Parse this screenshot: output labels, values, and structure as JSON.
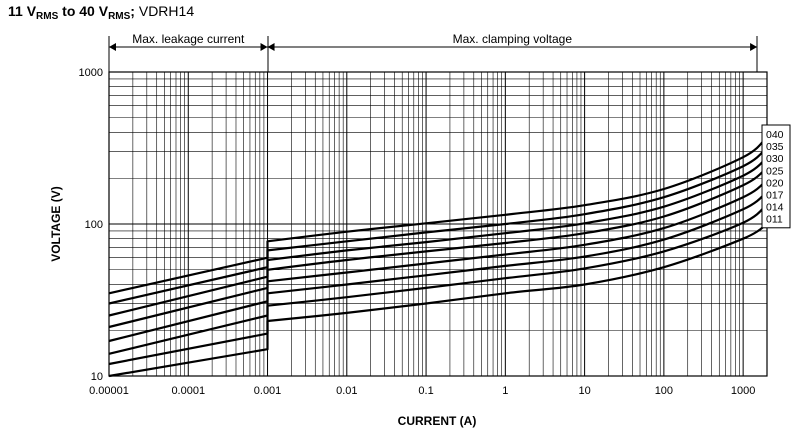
{
  "title": {
    "p1": "11 V",
    "p1_sub": "RMS",
    "p2": " to 40 V",
    "p2_sub": "RMS",
    "p3": "; ",
    "p4": "VDRH14"
  },
  "chart_data": {
    "type": "line",
    "xscale": "log",
    "yscale": "log",
    "xlabel": "CURRENT (A)",
    "ylabel": "VOLTAGE (V)",
    "xlim": [
      1e-05,
      2000
    ],
    "ylim": [
      10,
      1000
    ],
    "grid": true,
    "x_ticks": [
      1e-05,
      0.0001,
      0.001,
      0.01,
      0.1,
      1,
      10,
      100,
      1000
    ],
    "x_tick_labels": [
      "0.00001",
      "0.0001",
      "0.001",
      "0.01",
      "0.1",
      "1",
      "10",
      "100",
      "1000"
    ],
    "y_ticks": [
      10,
      100,
      1000
    ],
    "y_tick_labels": [
      "10",
      "100",
      "1000"
    ],
    "regions": [
      {
        "label": "Max. leakage current",
        "x_from": 1e-05,
        "x_to": 0.001
      },
      {
        "label": "Max. clamping voltage",
        "x_from": 0.001,
        "x_to": 1500
      }
    ],
    "legend_position": "right",
    "leakage_x": [
      1e-05,
      0.001
    ],
    "clamping_x": [
      0.001,
      0.01,
      0.1,
      1,
      10,
      100,
      1000,
      2000
    ],
    "series": [
      {
        "name": "040",
        "leakage": [
          35,
          60
        ],
        "clamping": [
          77,
          89,
          101,
          115,
          133,
          170,
          275,
          375
        ]
      },
      {
        "name": "035",
        "leakage": [
          30,
          52
        ],
        "clamping": [
          67,
          77,
          88,
          100,
          116,
          150,
          240,
          320
        ]
      },
      {
        "name": "030",
        "leakage": [
          25,
          45
        ],
        "clamping": [
          58,
          67,
          76,
          87,
          101,
          130,
          208,
          275
        ]
      },
      {
        "name": "025",
        "leakage": [
          21,
          38
        ],
        "clamping": [
          50,
          58,
          66,
          75,
          87,
          112,
          180,
          235
        ]
      },
      {
        "name": "020",
        "leakage": [
          17,
          31
        ],
        "clamping": [
          42,
          48,
          55,
          63,
          73,
          94,
          150,
          195
        ]
      },
      {
        "name": "017",
        "leakage": [
          14,
          25
        ],
        "clamping": [
          35,
          40,
          46,
          53,
          61,
          79,
          125,
          163
        ]
      },
      {
        "name": "014",
        "leakage": [
          12,
          19
        ],
        "clamping": [
          29,
          33,
          38,
          44,
          51,
          66,
          102,
          135
        ]
      },
      {
        "name": "011",
        "leakage": [
          10,
          15
        ],
        "clamping": [
          23,
          26,
          30,
          35,
          40,
          52,
          80,
          100
        ]
      }
    ]
  }
}
